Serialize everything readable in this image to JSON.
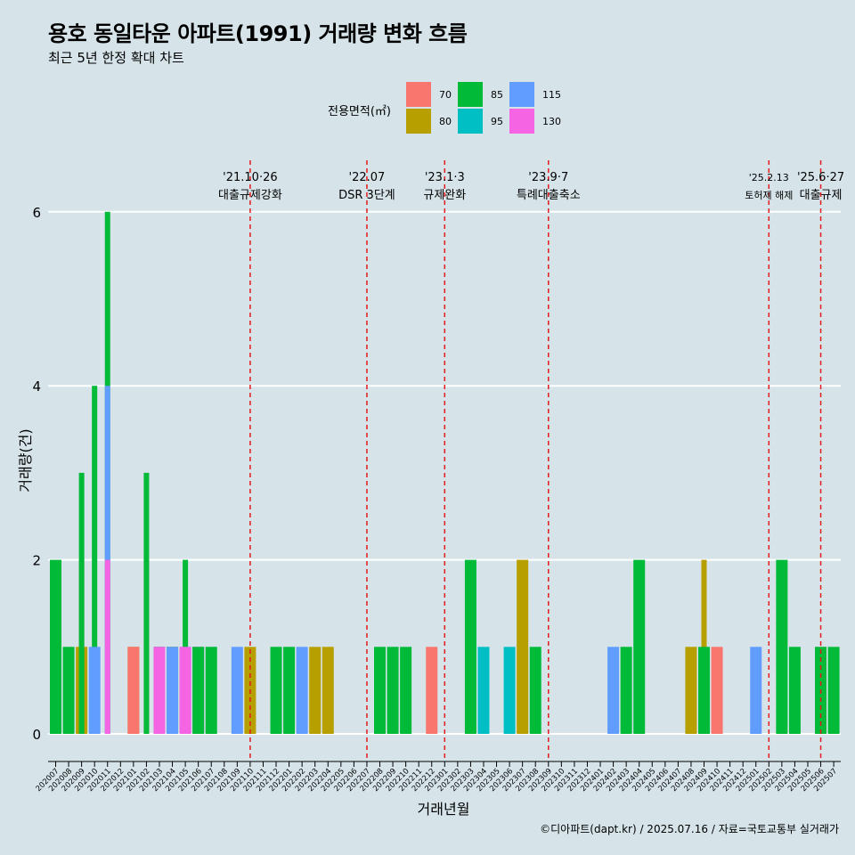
{
  "title": "용호 동일타운 아파트(1991) 거래량 변화 흐름",
  "subtitle": "최근 5년 한정 확대 차트",
  "caption": "©디아파트(dapt.kr) / 2025.07.16 / 자료=국토교통부 실거래가",
  "legend": {
    "title": "전용면적(㎡)",
    "items": [
      {
        "label": "70",
        "color": "#F8766D"
      },
      {
        "label": "80",
        "color": "#B79F00"
      },
      {
        "label": "85",
        "color": "#00BA38"
      },
      {
        "label": "95",
        "color": "#00BFC4"
      },
      {
        "label": "115",
        "color": "#619CFF"
      },
      {
        "label": "130",
        "color": "#F564E3"
      }
    ]
  },
  "chart_data": {
    "type": "bar",
    "xlabel": "거래년월",
    "ylabel": "거래량(건)",
    "ylim": [
      0,
      6
    ],
    "yticks": [
      0,
      2,
      4,
      6
    ],
    "grid": true,
    "legend_position": "top",
    "categories": [
      "202007",
      "202008",
      "202009",
      "202010",
      "202011",
      "202012",
      "202101",
      "202102",
      "202103",
      "202104",
      "202105",
      "202106",
      "202107",
      "202108",
      "202109",
      "202110",
      "202111",
      "202112",
      "202201",
      "202202",
      "202203",
      "202204",
      "202205",
      "202206",
      "202207",
      "202208",
      "202209",
      "202210",
      "202211",
      "202212",
      "202301",
      "202302",
      "202303",
      "202304",
      "202305",
      "202306",
      "202307",
      "202308",
      "202309",
      "202310",
      "202311",
      "202312",
      "202401",
      "202402",
      "202403",
      "202404",
      "202405",
      "202406",
      "202407",
      "202408",
      "202409",
      "202410",
      "202411",
      "202412",
      "202501",
      "202502",
      "202503",
      "202504",
      "202505",
      "202506",
      "202507"
    ],
    "bars": [
      {
        "month": "202007",
        "segments": [
          {
            "area": "85",
            "value": 2
          }
        ]
      },
      {
        "month": "202008",
        "segments": [
          {
            "area": "85",
            "value": 1
          }
        ]
      },
      {
        "month": "202009",
        "segments": [
          {
            "area": "70",
            "value": 2
          },
          {
            "area": "80",
            "value": 1
          },
          {
            "area": "85",
            "value": 3
          }
        ]
      },
      {
        "month": "202010",
        "segments": [
          {
            "area": "85",
            "value": 4
          },
          {
            "area": "115",
            "value": 1
          }
        ]
      },
      {
        "month": "202011",
        "segments": [
          {
            "area": "85",
            "value": 6
          },
          {
            "area": "115",
            "value": 4
          },
          {
            "area": "130",
            "value": 2
          }
        ]
      },
      {
        "month": "202101",
        "segments": [
          {
            "area": "80",
            "value": 1
          },
          {
            "area": "70",
            "value": 1
          }
        ]
      },
      {
        "month": "202102",
        "segments": [
          {
            "area": "70",
            "value": 2
          },
          {
            "area": "85",
            "value": 3
          }
        ]
      },
      {
        "month": "202103",
        "segments": [
          {
            "area": "80",
            "value": 1
          },
          {
            "area": "85",
            "value": 1
          },
          {
            "area": "115",
            "value": 1
          },
          {
            "area": "130",
            "value": 1
          }
        ]
      },
      {
        "month": "202104",
        "segments": [
          {
            "area": "80",
            "value": 1
          },
          {
            "area": "85",
            "value": 1
          },
          {
            "area": "115",
            "value": 1
          }
        ]
      },
      {
        "month": "202105",
        "segments": [
          {
            "area": "85",
            "value": 2
          },
          {
            "area": "115",
            "value": 1
          },
          {
            "area": "130",
            "value": 1
          }
        ]
      },
      {
        "month": "202106",
        "segments": [
          {
            "area": "115",
            "value": 1
          },
          {
            "area": "130",
            "value": 1
          },
          {
            "area": "85",
            "value": 1
          }
        ]
      },
      {
        "month": "202107",
        "segments": [
          {
            "area": "85",
            "value": 1
          }
        ]
      },
      {
        "month": "202109",
        "segments": [
          {
            "area": "115",
            "value": 1
          }
        ]
      },
      {
        "month": "202110",
        "segments": [
          {
            "area": "80",
            "value": 1
          }
        ]
      },
      {
        "month": "202112",
        "segments": [
          {
            "area": "85",
            "value": 1
          }
        ]
      },
      {
        "month": "202201",
        "segments": [
          {
            "area": "85",
            "value": 1
          }
        ]
      },
      {
        "month": "202202",
        "segments": [
          {
            "area": "115",
            "value": 1
          }
        ]
      },
      {
        "month": "202203",
        "segments": [
          {
            "area": "80",
            "value": 1
          }
        ]
      },
      {
        "month": "202204",
        "segments": [
          {
            "area": "80",
            "value": 1
          }
        ]
      },
      {
        "month": "202208",
        "segments": [
          {
            "area": "85",
            "value": 1
          }
        ]
      },
      {
        "month": "202209",
        "segments": [
          {
            "area": "85",
            "value": 1
          }
        ]
      },
      {
        "month": "202210",
        "segments": [
          {
            "area": "85",
            "value": 1
          }
        ]
      },
      {
        "month": "202212",
        "segments": [
          {
            "area": "70",
            "value": 1
          }
        ]
      },
      {
        "month": "202303",
        "segments": [
          {
            "area": "85",
            "value": 2
          }
        ]
      },
      {
        "month": "202304",
        "segments": [
          {
            "area": "95",
            "value": 1
          }
        ]
      },
      {
        "month": "202306",
        "segments": [
          {
            "area": "95",
            "value": 1
          }
        ]
      },
      {
        "month": "202307",
        "segments": [
          {
            "area": "80",
            "value": 2
          }
        ]
      },
      {
        "month": "202308",
        "segments": [
          {
            "area": "85",
            "value": 1
          }
        ]
      },
      {
        "month": "202402",
        "segments": [
          {
            "area": "115",
            "value": 1
          }
        ]
      },
      {
        "month": "202403",
        "segments": [
          {
            "area": "85",
            "value": 1
          }
        ]
      },
      {
        "month": "202404",
        "segments": [
          {
            "area": "85",
            "value": 2
          }
        ]
      },
      {
        "month": "202408",
        "segments": [
          {
            "area": "80",
            "value": 1
          }
        ]
      },
      {
        "month": "202409",
        "segments": [
          {
            "area": "80",
            "value": 2
          },
          {
            "area": "85",
            "value": 1
          }
        ]
      },
      {
        "month": "202410",
        "segments": [
          {
            "area": "70",
            "value": 1
          }
        ]
      },
      {
        "month": "202501",
        "segments": [
          {
            "area": "115",
            "value": 1
          }
        ]
      },
      {
        "month": "202503",
        "segments": [
          {
            "area": "85",
            "value": 2
          }
        ]
      },
      {
        "month": "202504",
        "segments": [
          {
            "area": "85",
            "value": 1
          }
        ]
      },
      {
        "month": "202506",
        "segments": [
          {
            "area": "70",
            "value": 1
          },
          {
            "area": "85",
            "value": 1
          }
        ]
      },
      {
        "month": "202507",
        "segments": [
          {
            "area": "85",
            "value": 1
          }
        ]
      }
    ],
    "annotations": [
      {
        "x": "202110",
        "date": "'21.10·26",
        "label": "대출규제강화"
      },
      {
        "x": "202207",
        "date": "'22.07",
        "label": "DSR 3단계"
      },
      {
        "x": "202301",
        "date": "'23.1·3",
        "label": "규제완화"
      },
      {
        "x": "202309",
        "date": "'23.9·7",
        "label": "특례대출축소"
      },
      {
        "x": "202502",
        "date": "'25.2.13",
        "label": "토허제 해제"
      },
      {
        "x": "202506",
        "date": "'25.6·27",
        "label": "대출규제"
      }
    ],
    "annotation_color": "#E41A1C"
  }
}
